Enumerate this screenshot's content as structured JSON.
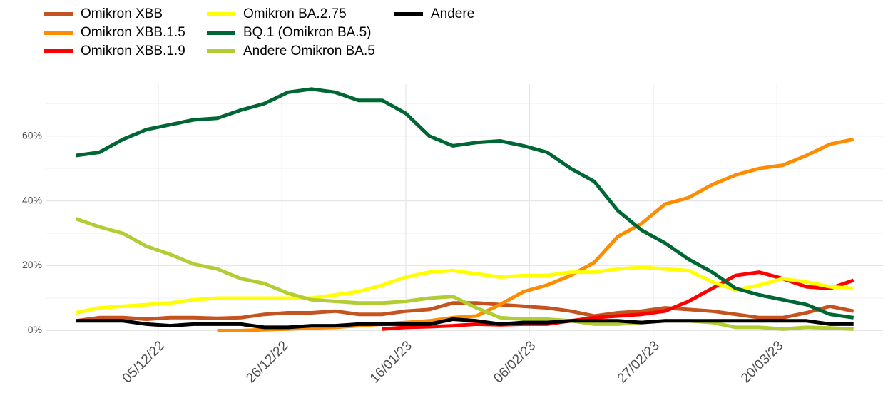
{
  "chart_data": {
    "type": "line",
    "x": [
      "2022-11-21",
      "2022-11-25",
      "2022-11-29",
      "2022-12-03",
      "2022-12-07",
      "2022-12-11",
      "2022-12-15",
      "2022-12-19",
      "2022-12-23",
      "2022-12-27",
      "2022-12-31",
      "2023-01-04",
      "2023-01-08",
      "2023-01-12",
      "2023-01-16",
      "2023-01-20",
      "2023-01-24",
      "2023-01-28",
      "2023-02-01",
      "2023-02-05",
      "2023-02-09",
      "2023-02-13",
      "2023-02-17",
      "2023-02-21",
      "2023-02-25",
      "2023-03-01",
      "2023-03-05",
      "2023-03-09",
      "2023-03-13",
      "2023-03-17",
      "2023-03-21",
      "2023-03-25",
      "2023-03-29",
      "2023-04-02"
    ],
    "series": [
      {
        "name": "Omikron XBB",
        "color": "#c4531f",
        "values": [
          3,
          4,
          4,
          3.5,
          4,
          4,
          3.8,
          4,
          5,
          5.5,
          5.5,
          6,
          5,
          5,
          6,
          6.5,
          8.5,
          8.5,
          8,
          7.5,
          7,
          6,
          4.5,
          5.5,
          6,
          7,
          6.5,
          6,
          5,
          4,
          4,
          5.5,
          7.5,
          6
        ]
      },
      {
        "name": "Omikron XBB.1.5",
        "color": "#ff8c00",
        "values": [
          null,
          null,
          null,
          null,
          null,
          null,
          0,
          0,
          0.3,
          0.5,
          0.8,
          1,
          1.5,
          2,
          2.5,
          3,
          4,
          4.5,
          8,
          12,
          14,
          17,
          21,
          29,
          33,
          39,
          41,
          45,
          48,
          50,
          51,
          54,
          57.5,
          59
        ]
      },
      {
        "name": "Omikron XBB.1.9",
        "color": "#ff0000",
        "values": [
          null,
          null,
          null,
          null,
          null,
          null,
          null,
          null,
          null,
          null,
          null,
          null,
          null,
          0.5,
          1,
          1.2,
          1.5,
          2,
          1.8,
          2,
          2,
          3,
          4,
          4.5,
          5,
          6,
          9,
          13,
          17,
          18,
          16,
          13.5,
          13,
          15.5
        ]
      },
      {
        "name": "Omikron BA.2.75",
        "color": "#ffff00",
        "values": [
          5.5,
          7,
          7.5,
          8,
          8.5,
          9.5,
          10,
          10,
          10,
          10,
          10,
          11,
          12,
          14,
          16.5,
          18,
          18.5,
          17.5,
          16.5,
          17,
          17,
          18,
          18,
          19,
          19.5,
          19,
          18.5,
          15,
          12.5,
          14,
          16,
          15,
          13.5,
          13
        ]
      },
      {
        "name": "BQ.1 (Omikron BA.5)",
        "color": "#006633",
        "values": [
          54,
          55,
          59,
          62,
          63.5,
          65,
          65.5,
          68,
          70,
          73.5,
          74.5,
          73.5,
          71,
          71,
          67,
          60,
          57,
          58,
          58.5,
          57,
          55,
          50,
          46,
          37,
          31,
          27,
          22,
          18,
          13,
          11,
          9.5,
          8,
          5,
          4
        ]
      },
      {
        "name": "Andere Omikron BA.5",
        "color": "#b2cc33",
        "values": [
          34.5,
          32,
          30,
          26,
          23.5,
          20.5,
          19,
          16,
          14.5,
          11.5,
          9.5,
          9,
          8.5,
          8.5,
          9,
          10,
          10.5,
          7,
          4,
          3.5,
          3.5,
          3,
          2,
          2,
          2.5,
          3,
          3,
          2.5,
          1,
          1,
          0.5,
          1,
          0.8,
          0.5
        ]
      },
      {
        "name": "Andere",
        "color": "#000000",
        "values": [
          3,
          3,
          3,
          2,
          1.5,
          2,
          2,
          2,
          1,
          1,
          1.5,
          1.5,
          2,
          2,
          2,
          2,
          3.5,
          3,
          2,
          2.5,
          2.5,
          3,
          3,
          3,
          2.5,
          3,
          3,
          3,
          3,
          3,
          3,
          3,
          2,
          2
        ]
      }
    ],
    "xlim": [
      "2022-11-16",
      "2023-04-07"
    ],
    "xticks": [
      {
        "value": "2022-12-05",
        "label": "05/12/22"
      },
      {
        "value": "2022-12-26",
        "label": "26/12/22"
      },
      {
        "value": "2023-01-16",
        "label": "16/01/23"
      },
      {
        "value": "2023-02-06",
        "label": "06/02/23"
      },
      {
        "value": "2023-02-27",
        "label": "27/02/23"
      },
      {
        "value": "2023-03-20",
        "label": "20/03/23"
      }
    ],
    "ylim": [
      -1,
      76
    ],
    "yticks": [
      {
        "value": 0,
        "label": "0%"
      },
      {
        "value": 20,
        "label": "20%"
      },
      {
        "value": 40,
        "label": "40%"
      },
      {
        "value": 60,
        "label": "60%"
      }
    ],
    "minor_yticks": [
      10,
      30,
      50,
      70
    ],
    "grid": true
  }
}
